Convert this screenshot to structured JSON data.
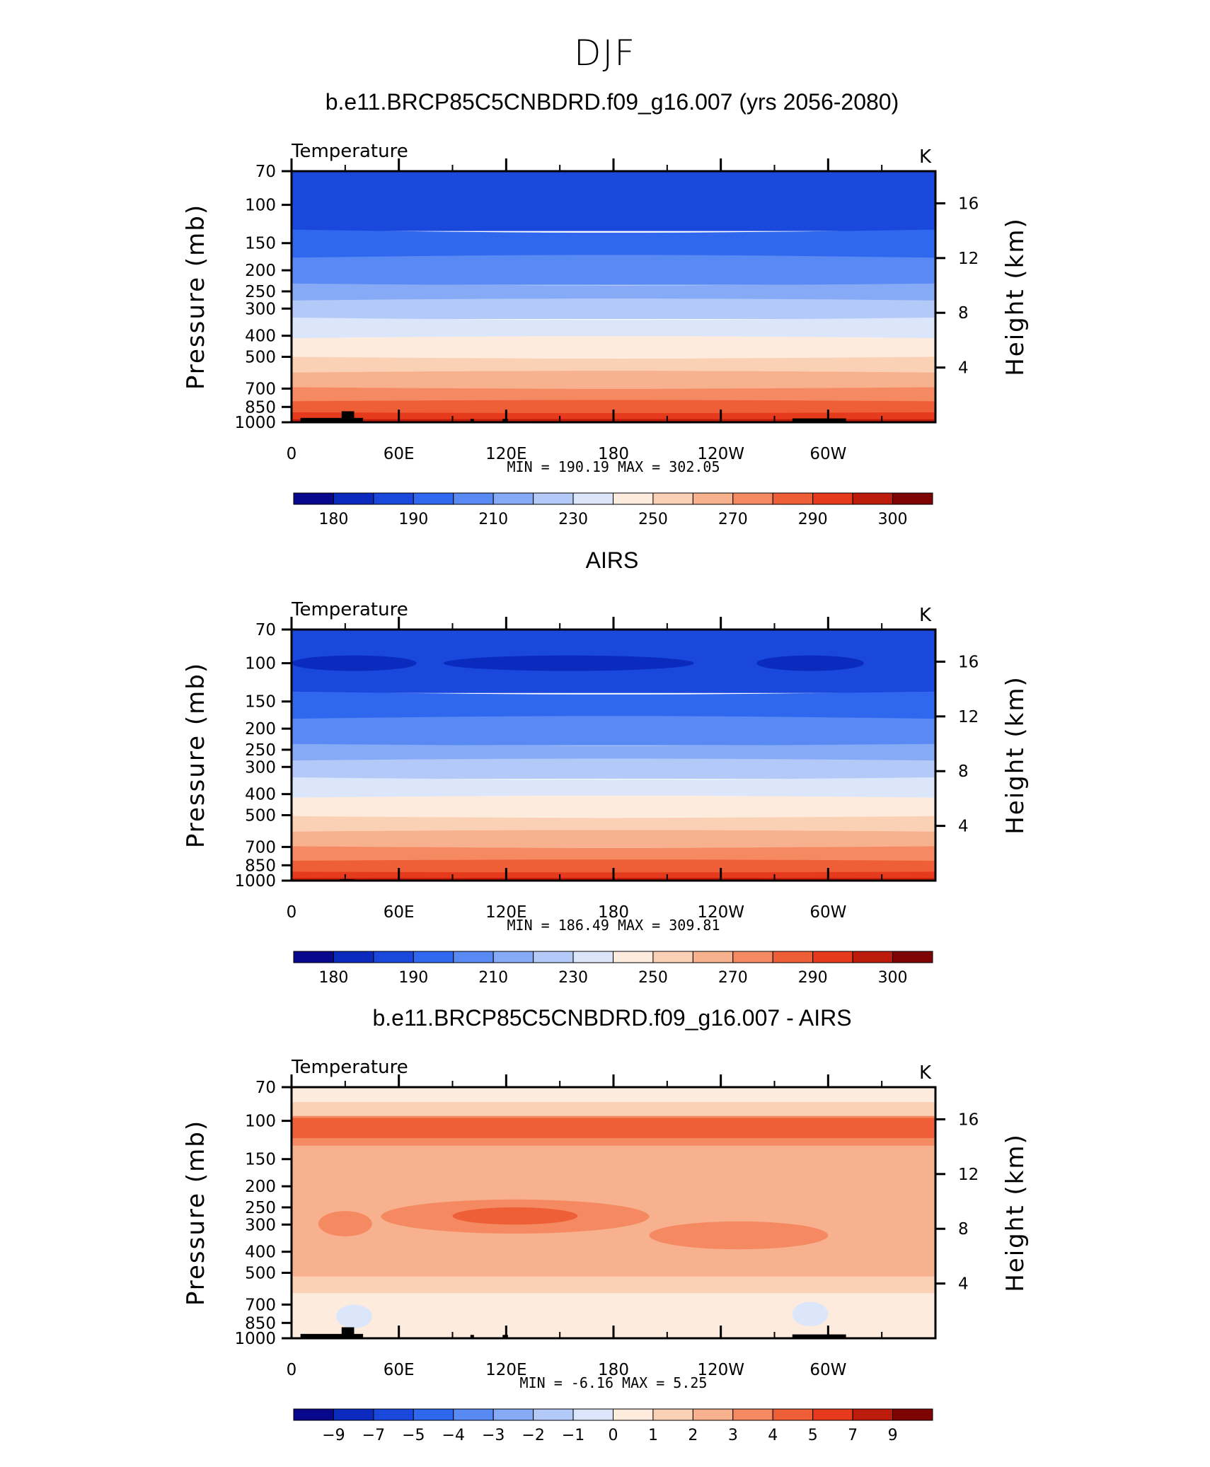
{
  "figure": {
    "supertitle": "DJF"
  },
  "colors": {
    "abs_scale": [
      "#08088c",
      "#0a2bbd",
      "#1a48dd",
      "#2f67ef",
      "#5989f2",
      "#86aaf5",
      "#b3c9f8",
      "#dbe6fb",
      "#fdebdd",
      "#fbd1b6",
      "#f8b18e",
      "#f58a62",
      "#ef5f37",
      "#e53a1b",
      "#bd1b0b",
      "#7e0504"
    ],
    "diff_scale": [
      "#08088c",
      "#0a2bbd",
      "#1a48dd",
      "#2f67ef",
      "#5989f2",
      "#86aaf5",
      "#b3c9f8",
      "#dbe6fb",
      "#fdebdd",
      "#fbd1b6",
      "#f8b18e",
      "#f58a62",
      "#ef5f37",
      "#e53a1b",
      "#bd1b0b",
      "#7e0504"
    ],
    "topography": "#000000"
  },
  "chart_data": [
    {
      "type": "contour",
      "title": "b.e11.BRCP85C5CNBDRD.f09_g16.007 (yrs 2056-2080)",
      "left_label": "Temperature",
      "right_label": "K",
      "ylabel": "Pressure (mb)",
      "y2label": "Height (km)",
      "x_ticks": [
        "0",
        "60E",
        "120E",
        "180",
        "120W",
        "60W"
      ],
      "x_tick_lons": [
        0,
        60,
        120,
        180,
        240,
        300
      ],
      "xlim": [
        0,
        360
      ],
      "y_ticks": [
        "70",
        "100",
        "150",
        "200",
        "250",
        "300",
        "400",
        "500",
        "700",
        "850",
        "1000"
      ],
      "y_tick_values": [
        70,
        100,
        150,
        200,
        250,
        300,
        400,
        500,
        700,
        850,
        1000
      ],
      "ylim": [
        70,
        1000
      ],
      "y2_ticks": [
        "16",
        "12",
        "8",
        "4"
      ],
      "y2_tick_values": [
        16,
        12,
        8,
        4
      ],
      "stats": "MIN = 190.19 MAX = 302.05",
      "min": 190.19,
      "max": 302.05,
      "colorbar_labels": [
        "180",
        "190",
        "210",
        "230",
        "250",
        "270",
        "290",
        "300"
      ],
      "levels_by_pressure": [
        {
          "p": 70,
          "class": 2
        },
        {
          "p": 130,
          "class": 3
        },
        {
          "p": 175,
          "class": 4
        },
        {
          "p": 230,
          "class": 5
        },
        {
          "p": 275,
          "class": 6
        },
        {
          "p": 330,
          "class": 7
        },
        {
          "p": 410,
          "class": 8
        },
        {
          "p": 500,
          "class": 9
        },
        {
          "p": 590,
          "class": 10
        },
        {
          "p": 690,
          "class": 11
        },
        {
          "p": 800,
          "class": 12
        },
        {
          "p": 900,
          "class": 13
        },
        {
          "p": 970,
          "class": 14
        }
      ],
      "topography": [
        {
          "lon0": 5,
          "lon1": 40,
          "pmin": 955
        },
        {
          "lon0": 28,
          "lon1": 35,
          "pmin": 890
        },
        {
          "lon0": 100,
          "lon1": 102,
          "pmin": 965
        },
        {
          "lon0": 118,
          "lon1": 121,
          "pmin": 965
        },
        {
          "lon0": 280,
          "lon1": 310,
          "pmin": 960
        }
      ]
    },
    {
      "type": "contour",
      "title": "AIRS",
      "left_label": "Temperature",
      "right_label": "K",
      "ylabel": "Pressure (mb)",
      "y2label": "Height (km)",
      "x_ticks": [
        "0",
        "60E",
        "120E",
        "180",
        "120W",
        "60W"
      ],
      "x_tick_lons": [
        0,
        60,
        120,
        180,
        240,
        300
      ],
      "xlim": [
        0,
        360
      ],
      "y_ticks": [
        "70",
        "100",
        "150",
        "200",
        "250",
        "300",
        "400",
        "500",
        "700",
        "850",
        "1000"
      ],
      "y_tick_values": [
        70,
        100,
        150,
        200,
        250,
        300,
        400,
        500,
        700,
        850,
        1000
      ],
      "ylim": [
        70,
        1000
      ],
      "y2_ticks": [
        "16",
        "12",
        "8",
        "4"
      ],
      "y2_tick_values": [
        16,
        12,
        8,
        4
      ],
      "stats": "MIN = 186.49 MAX = 309.81",
      "min": 186.49,
      "max": 309.81,
      "colorbar_labels": [
        "180",
        "190",
        "210",
        "230",
        "250",
        "270",
        "290",
        "300"
      ],
      "levels_by_pressure": [
        {
          "p": 70,
          "class": 2
        },
        {
          "p": 135,
          "class": 3
        },
        {
          "p": 180,
          "class": 4
        },
        {
          "p": 235,
          "class": 5
        },
        {
          "p": 280,
          "class": 6
        },
        {
          "p": 335,
          "class": 7
        },
        {
          "p": 415,
          "class": 8
        },
        {
          "p": 505,
          "class": 9
        },
        {
          "p": 595,
          "class": 10
        },
        {
          "p": 695,
          "class": 11
        },
        {
          "p": 810,
          "class": 12
        },
        {
          "p": 910,
          "class": 13
        },
        {
          "p": 975,
          "class": 14
        }
      ],
      "cold_pools": [
        {
          "lon0": 0,
          "lon1": 70,
          "p": 100,
          "class": 1
        },
        {
          "lon0": 85,
          "lon1": 225,
          "p": 100,
          "class": 1
        },
        {
          "lon0": 260,
          "lon1": 320,
          "p": 100,
          "class": 1
        }
      ],
      "topography": [
        {
          "lon0": 27,
          "lon1": 35,
          "pmin": 985
        }
      ]
    },
    {
      "type": "contour",
      "title": "b.e11.BRCP85C5CNBDRD.f09_g16.007 - AIRS",
      "left_label": "Temperature",
      "right_label": "K",
      "ylabel": "Pressure (mb)",
      "y2label": "Height (km)",
      "x_ticks": [
        "0",
        "60E",
        "120E",
        "180",
        "120W",
        "60W"
      ],
      "x_tick_lons": [
        0,
        60,
        120,
        180,
        240,
        300
      ],
      "xlim": [
        0,
        360
      ],
      "y_ticks": [
        "70",
        "100",
        "150",
        "200",
        "250",
        "300",
        "400",
        "500",
        "700",
        "850",
        "1000"
      ],
      "y_tick_values": [
        70,
        100,
        150,
        200,
        250,
        300,
        400,
        500,
        700,
        850,
        1000
      ],
      "ylim": [
        70,
        1000
      ],
      "y2_ticks": [
        "16",
        "12",
        "8",
        "4"
      ],
      "y2_tick_values": [
        16,
        12,
        8,
        4
      ],
      "stats": "MIN = -6.16 MAX = 5.25",
      "min": -6.16,
      "max": 5.25,
      "colorbar_labels": [
        "−9",
        "−7",
        "−5",
        "−4",
        "−3",
        "−2",
        "−1",
        "0",
        "1",
        "2",
        "3",
        "4",
        "5",
        "7",
        "9"
      ],
      "background_class": 9,
      "regions": [
        {
          "lon0": 0,
          "lon1": 360,
          "p0": 70,
          "p1": 82,
          "class": 8
        },
        {
          "lon0": 0,
          "lon1": 360,
          "p0": 82,
          "p1": 95,
          "class": 9
        },
        {
          "lon0": 0,
          "lon1": 360,
          "p0": 95,
          "p1": 330,
          "class": 10
        },
        {
          "lon0": 0,
          "lon1": 360,
          "p0": 330,
          "p1": 520,
          "class": 10
        },
        {
          "lon0": 0,
          "lon1": 360,
          "p0": 520,
          "p1": 620,
          "class": 9
        },
        {
          "lon0": 0,
          "lon1": 360,
          "p0": 620,
          "p1": 1000,
          "class": 8
        },
        {
          "lon0": 0,
          "lon1": 360,
          "p0": 95,
          "p1": 130,
          "class": 11
        },
        {
          "lon0": 0,
          "lon1": 360,
          "p0": 97,
          "p1": 120,
          "class": 12
        },
        {
          "lon0": 50,
          "lon1": 200,
          "p0": 230,
          "p1": 330,
          "class": 11
        },
        {
          "lon0": 90,
          "lon1": 160,
          "p0": 250,
          "p1": 300,
          "class": 12
        },
        {
          "lon0": 200,
          "lon1": 300,
          "p0": 290,
          "p1": 390,
          "class": 11
        },
        {
          "lon0": 15,
          "lon1": 45,
          "p0": 260,
          "p1": 340,
          "class": 11
        },
        {
          "lon0": 25,
          "lon1": 45,
          "p0": 700,
          "p1": 900,
          "class": 7
        },
        {
          "lon0": 280,
          "lon1": 300,
          "p0": 680,
          "p1": 880,
          "class": 7
        }
      ],
      "topography": [
        {
          "lon0": 5,
          "lon1": 40,
          "pmin": 955
        },
        {
          "lon0": 28,
          "lon1": 35,
          "pmin": 890
        },
        {
          "lon0": 100,
          "lon1": 102,
          "pmin": 965
        },
        {
          "lon0": 118,
          "lon1": 121,
          "pmin": 965
        },
        {
          "lon0": 280,
          "lon1": 310,
          "pmin": 960
        }
      ]
    }
  ]
}
